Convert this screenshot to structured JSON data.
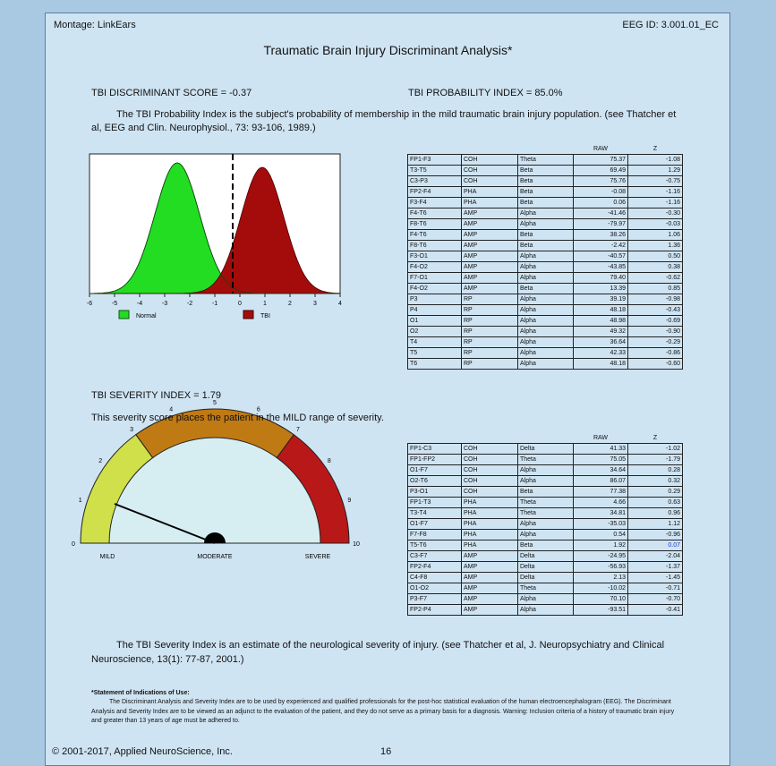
{
  "header": {
    "montage": "Montage: LinkEars",
    "eeg_id": "EEG ID: 3.001.01_EC",
    "title": "Traumatic Brain Injury Discriminant Analysis*"
  },
  "scores": {
    "discriminant": "TBI DISCRIMINANT SCORE = -0.37",
    "probability": "TBI PROBABILITY INDEX = 85.0%",
    "description": "The TBI Probability Index is the subject's probability of membership in the mild traumatic brain injury population. (see Thatcher et al, EEG and Clin. Neurophysiol., 73: 93-106, 1989.)"
  },
  "distribution": {
    "xticks": [
      -6,
      -5,
      -4,
      -3,
      -2,
      -1,
      0,
      1,
      2,
      3,
      4
    ],
    "legend": [
      "Normal",
      "TBI"
    ]
  },
  "table1": {
    "columns": [
      "RAW",
      "Z"
    ],
    "rows": [
      [
        "FP1-F3",
        "COH",
        "Theta",
        "75.37",
        "-1.08"
      ],
      [
        "T3-T5",
        "COH",
        "Beta",
        "69.49",
        "1.29"
      ],
      [
        "C3-P3",
        "COH",
        "Beta",
        "75.76",
        "-0.75"
      ],
      [
        "FP2-F4",
        "PHA",
        "Beta",
        "-0.08",
        "-1.16"
      ],
      [
        "F3-F4",
        "PHA",
        "Beta",
        "0.06",
        "-1.16"
      ],
      [
        "F4-T6",
        "AMP",
        "Alpha",
        "-41.46",
        "-0.30"
      ],
      [
        "F8-T6",
        "AMP",
        "Alpha",
        "-79.97",
        "-0.03"
      ],
      [
        "F4-T6",
        "AMP",
        "Beta",
        "38.26",
        "1.06"
      ],
      [
        "F8-T6",
        "AMP",
        "Beta",
        "-2.42",
        "1.36"
      ],
      [
        "F3-O1",
        "AMP",
        "Alpha",
        "-40.57",
        "0.50"
      ],
      [
        "F4-O2",
        "AMP",
        "Alpha",
        "-43.85",
        "0.38"
      ],
      [
        "F7-O1",
        "AMP",
        "Alpha",
        "79.40",
        "-0.62"
      ],
      [
        "F4-O2",
        "AMP",
        "Beta",
        "13.39",
        "0.85"
      ],
      [
        "P3",
        "RP",
        "Alpha",
        "39.19",
        "-0.98"
      ],
      [
        "P4",
        "RP",
        "Alpha",
        "48.18",
        "-0.43"
      ],
      [
        "O1",
        "RP",
        "Alpha",
        "48.98",
        "-0.69"
      ],
      [
        "O2",
        "RP",
        "Alpha",
        "49.32",
        "-0.90"
      ],
      [
        "T4",
        "RP",
        "Alpha",
        "36.64",
        "-0.29"
      ],
      [
        "T5",
        "RP",
        "Alpha",
        "42.33",
        "-0.86"
      ],
      [
        "T6",
        "RP",
        "Alpha",
        "48.18",
        "-0.60"
      ]
    ]
  },
  "severity": {
    "index": "TBI SEVERITY INDEX = 1.79",
    "statement": "This severity score places the patient in the MILD range of severity.",
    "description": "The TBI Severity Index is an estimate of the neurological severity of injury. (see Thatcher et al, J. Neuropsychiatry and Clinical Neuroscience, 13(1): 77-87, 2001.)"
  },
  "gauge": {
    "ticks": [
      0,
      1,
      2,
      3,
      4,
      5,
      6,
      7,
      8,
      9,
      10
    ],
    "labels": [
      "MILD",
      "MODERATE",
      "SEVERE"
    ]
  },
  "table2": {
    "columns": [
      "RAW",
      "Z"
    ],
    "rows": [
      [
        "FP1-C3",
        "COH",
        "Delta",
        "41.33",
        "-1.02"
      ],
      [
        "FP1-FP2",
        "COH",
        "Theta",
        "75.05",
        "-1.79"
      ],
      [
        "O1-F7",
        "COH",
        "Alpha",
        "34.64",
        "0.28"
      ],
      [
        "O2-T6",
        "COH",
        "Alpha",
        "86.07",
        "0.32"
      ],
      [
        "P3-O1",
        "COH",
        "Beta",
        "77.38",
        "0.29"
      ],
      [
        "FP1-T3",
        "PHA",
        "Theta",
        "4.66",
        "0.63"
      ],
      [
        "T3-T4",
        "PHA",
        "Theta",
        "34.81",
        "0.96"
      ],
      [
        "O1-F7",
        "PHA",
        "Alpha",
        "-35.03",
        "1.12"
      ],
      [
        "F7-F8",
        "PHA",
        "Alpha",
        "0.54",
        "-0.96"
      ],
      [
        "T5-T6",
        "PHA",
        "Beta",
        "1.92",
        "0.07"
      ],
      [
        "C3-F7",
        "AMP",
        "Delta",
        "-24.95",
        "-2.04"
      ],
      [
        "FP2-F4",
        "AMP",
        "Delta",
        "-56.93",
        "-1.37"
      ],
      [
        "C4-F8",
        "AMP",
        "Delta",
        "2.13",
        "-1.45"
      ],
      [
        "O1-O2",
        "AMP",
        "Theta",
        "-10.02",
        "-0.71"
      ],
      [
        "P3-F7",
        "AMP",
        "Alpha",
        "70.10",
        "-0.70"
      ],
      [
        "FP2-P4",
        "AMP",
        "Alpha",
        "-93.51",
        "-0.41"
      ]
    ]
  },
  "indications": {
    "heading": "*Statement of Indications of Use:",
    "text": "The Discriminant Analysis and Severity Index are to be used by experienced and qualified professionals for the post-hoc statistical evaluation of the human electroencephalogram (EEG). The Discriminant Analysis and Severity Index are to be viewed as an adjunct to the evaluation of the patient, and they do not serve as a primary basis for a diagnosis. Warning: Inclusion criteria of a history of traumatic brain injury and greater than 13 years of age must be adhered to."
  },
  "footer": {
    "copyright": "© 2001-2017, Applied NeuroScience, Inc.",
    "page": "16"
  }
}
